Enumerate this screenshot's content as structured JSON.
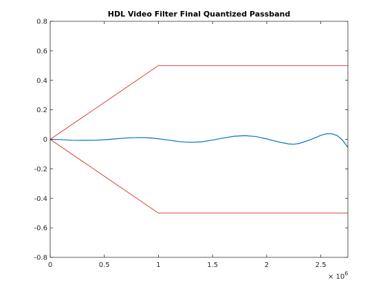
{
  "chart_data": {
    "type": "line",
    "title": "HDL Video Filter Final Quantized Passband",
    "xlabel": "",
    "ylabel": "",
    "xlim": [
      0,
      2750000
    ],
    "ylim": [
      -0.8,
      0.8
    ],
    "x_ticks": [
      0,
      500000,
      1000000,
      1500000,
      2000000,
      2500000
    ],
    "x_tick_labels": [
      "0",
      "0.5",
      "1",
      "1.5",
      "2",
      "2.5"
    ],
    "x_exponent": {
      "base": "× 10",
      "power": "6"
    },
    "y_ticks": [
      -0.8,
      -0.6,
      -0.4,
      -0.2,
      0,
      0.2,
      0.4,
      0.6,
      0.8
    ],
    "y_tick_labels": [
      "-0.8",
      "-0.6",
      "-0.4",
      "-0.2",
      "0",
      "0.2",
      "0.4",
      "0.6",
      "0.8"
    ],
    "grid": false,
    "box": true,
    "series": [
      {
        "color": "#0072bd",
        "x": [
          0,
          100000,
          200000,
          300000,
          400000,
          500000,
          600000,
          700000,
          800000,
          900000,
          1000000,
          1100000,
          1200000,
          1300000,
          1400000,
          1500000,
          1600000,
          1700000,
          1800000,
          1900000,
          2000000,
          2100000,
          2200000,
          2250000,
          2300000,
          2400000,
          2500000,
          2550000,
          2600000,
          2650000,
          2700000,
          2750000
        ],
        "y": [
          0,
          -0.002,
          -0.006,
          -0.007,
          -0.006,
          -0.003,
          0.003,
          0.009,
          0.012,
          0.011,
          0.004,
          -0.006,
          -0.016,
          -0.02,
          -0.017,
          -0.005,
          0.009,
          0.021,
          0.025,
          0.019,
          0.003,
          -0.016,
          -0.031,
          -0.033,
          -0.028,
          -0.004,
          0.027,
          0.037,
          0.038,
          0.026,
          -0.005,
          -0.055
        ]
      },
      {
        "color": "#d62728",
        "x": [
          0,
          1000000,
          2750000
        ],
        "y": [
          0,
          0.5,
          0.5
        ]
      },
      {
        "color": "#d62728",
        "x": [
          0,
          1000000,
          2750000
        ],
        "y": [
          0,
          -0.5,
          -0.5
        ]
      }
    ]
  }
}
